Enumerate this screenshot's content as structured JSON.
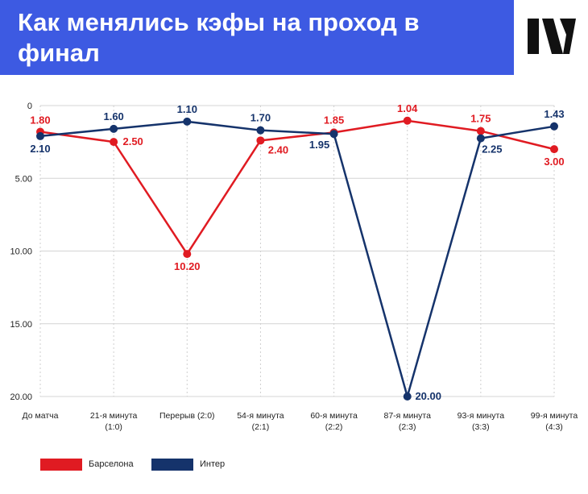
{
  "header": {
    "title": "Как менялись кэфы на проход в финал",
    "banner_color": "#3d5ae2",
    "logo_icon": "brand-logo-icon"
  },
  "chart_data": {
    "type": "line",
    "title": "Как менялись кэфы на проход в финал",
    "categories": [
      [
        "До матча"
      ],
      [
        "21-я минута",
        "(1:0)"
      ],
      [
        "Перерыв (2:0)"
      ],
      [
        "54-я минута",
        "(2:1)"
      ],
      [
        "60-я минута",
        "(2:2)"
      ],
      [
        "87-я минута",
        "(2:3)"
      ],
      [
        "93-я минута",
        "(3:3)"
      ],
      [
        "99-я минута",
        "(4:3)"
      ]
    ],
    "y_ticks": [
      "0",
      "5.00",
      "10.00",
      "15.00",
      "20.00"
    ],
    "ylim": [
      0,
      20
    ],
    "y_inverted": true,
    "grid": "horizontal",
    "series": [
      {
        "name": "Барселона",
        "color": "#e01b22",
        "values": [
          1.8,
          2.5,
          10.2,
          2.4,
          1.85,
          1.04,
          1.75,
          3.0
        ],
        "labels": [
          "1.80",
          "2.50",
          "10.20",
          "2.40",
          "1.85",
          "1.04",
          "1.75",
          "3.00"
        ]
      },
      {
        "name": "Интер",
        "color": "#15336b",
        "values": [
          2.1,
          1.6,
          1.1,
          1.7,
          1.95,
          20.0,
          2.25,
          1.43
        ],
        "labels": [
          "2.10",
          "1.60",
          "1.10",
          "1.70",
          "1.95",
          "20.00",
          "2.25",
          "1.43"
        ]
      }
    ],
    "legend_position": "bottom-left"
  }
}
